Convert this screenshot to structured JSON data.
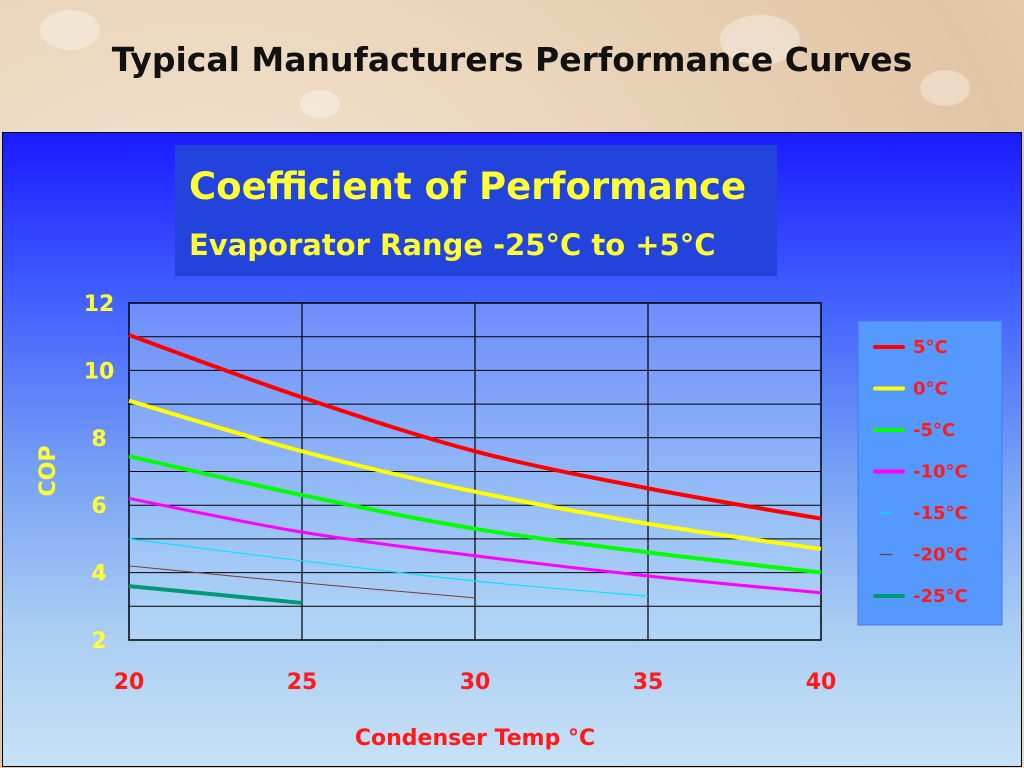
{
  "slide": {
    "title": "Typical Manufacturers Performance Curves"
  },
  "chart_data": {
    "type": "line",
    "title": "Coefficient of Performance",
    "subtitle": "Evaporator Range -25°C to +5°C",
    "xlabel": "Condenser Temp °C",
    "ylabel": "COP",
    "xlim": [
      20,
      40
    ],
    "ylim": [
      2,
      12
    ],
    "xticks": [
      20,
      25,
      30,
      35,
      40
    ],
    "yticks": [
      2,
      4,
      6,
      8,
      10,
      12
    ],
    "grid": true,
    "legend_position": "right",
    "series": [
      {
        "name": "5°C",
        "color": "#ff0000",
        "x": [
          20,
          25,
          30,
          35,
          40
        ],
        "y": [
          11.05,
          9.2,
          7.6,
          6.5,
          5.6
        ]
      },
      {
        "name": "0°C",
        "color": "#ffff00",
        "x": [
          20,
          25,
          30,
          35,
          40
        ],
        "y": [
          9.1,
          7.6,
          6.4,
          5.45,
          4.7
        ]
      },
      {
        "name": "-5°C",
        "color": "#00ff00",
        "x": [
          20,
          25,
          30,
          35,
          40
        ],
        "y": [
          7.45,
          6.3,
          5.3,
          4.6,
          4.0
        ]
      },
      {
        "name": "-10°C",
        "color": "#ff00ff",
        "x": [
          20,
          25,
          30,
          35,
          40
        ],
        "y": [
          6.2,
          5.2,
          4.5,
          3.9,
          3.4
        ]
      },
      {
        "name": "-15°C",
        "color": "#00e5ff",
        "x": [
          20,
          25,
          30,
          35
        ],
        "y": [
          5.0,
          4.35,
          3.75,
          3.3
        ]
      },
      {
        "name": "-20°C",
        "color": "#7a3a3a",
        "x": [
          20,
          25,
          30
        ],
        "y": [
          4.2,
          3.7,
          3.25
        ]
      },
      {
        "name": "-25°C",
        "color": "#009977",
        "x": [
          20,
          25
        ],
        "y": [
          3.6,
          3.1
        ]
      }
    ]
  }
}
